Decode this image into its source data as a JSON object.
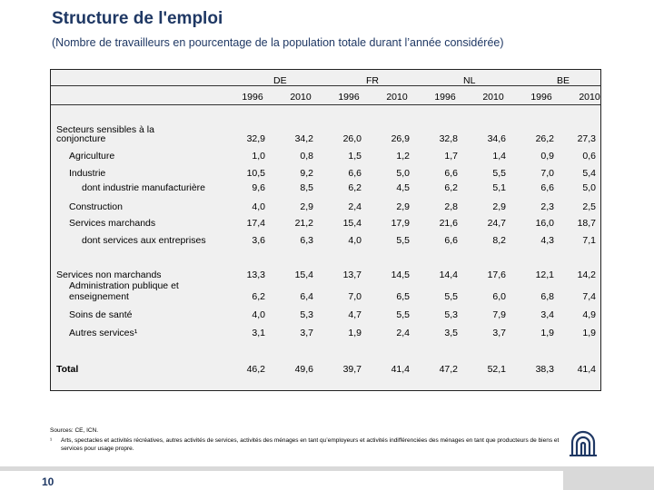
{
  "title": "Structure de l'emploi",
  "subtitle": "(Nombre de travailleurs en pourcentage de la population totale durant l’année considérée)",
  "countries": [
    "DE",
    "FR",
    "NL",
    "BE"
  ],
  "years": [
    "1996",
    "2010",
    "1996",
    "2010",
    "1996",
    "2010",
    "1996",
    "2010"
  ],
  "rows": [
    {
      "label": "Secteurs sensibles à la",
      "values": []
    },
    {
      "label": "conjoncture",
      "values": [
        "32,9",
        "34,2",
        "26,0",
        "26,9",
        "32,8",
        "34,6",
        "26,2",
        "27,3"
      ]
    },
    {
      "label": "Agriculture",
      "values": [
        "1,0",
        "0,8",
        "1,5",
        "1,2",
        "1,7",
        "1,4",
        "0,9",
        "0,6"
      ]
    },
    {
      "label": "Industrie",
      "values": [
        "10,5",
        "9,2",
        "6,6",
        "5,0",
        "6,6",
        "5,5",
        "7,0",
        "5,4"
      ]
    },
    {
      "label": "dont industrie manufacturière",
      "values": [
        "9,6",
        "8,5",
        "6,2",
        "4,5",
        "6,2",
        "5,1",
        "6,6",
        "5,0"
      ]
    },
    {
      "label": "Construction",
      "values": [
        "4,0",
        "2,9",
        "2,4",
        "2,9",
        "2,8",
        "2,9",
        "2,3",
        "2,5"
      ]
    },
    {
      "label": "Services marchands",
      "values": [
        "17,4",
        "21,2",
        "15,4",
        "17,9",
        "21,6",
        "24,7",
        "16,0",
        "18,7"
      ]
    },
    {
      "label": "dont services aux entreprises",
      "values": [
        "3,6",
        "6,3",
        "4,0",
        "5,5",
        "6,6",
        "8,2",
        "4,3",
        "7,1"
      ]
    },
    {
      "label": "Services non marchands",
      "values": [
        "13,3",
        "15,4",
        "13,7",
        "14,5",
        "14,4",
        "17,6",
        "12,1",
        "14,2"
      ]
    },
    {
      "label": "Administration publique et",
      "values": []
    },
    {
      "label": "enseignement",
      "values": [
        "6,2",
        "6,4",
        "7,0",
        "6,5",
        "5,5",
        "6,0",
        "6,8",
        "7,4"
      ]
    },
    {
      "label": "Soins de santé",
      "values": [
        "4,0",
        "5,3",
        "4,7",
        "5,5",
        "5,3",
        "7,9",
        "3,4",
        "4,9"
      ]
    },
    {
      "label": "Autres services¹",
      "values": [
        "3,1",
        "3,7",
        "1,9",
        "2,4",
        "3,5",
        "3,7",
        "1,9",
        "1,9"
      ]
    },
    {
      "label": "Total",
      "values": [
        "46,2",
        "49,6",
        "39,7",
        "41,4",
        "47,2",
        "52,1",
        "38,3",
        "41,4"
      ]
    }
  ],
  "sources": "Sources: CE, ICN.",
  "footnote_mark": "¹",
  "footnote": "Arts, spectacles et activités récréatives, autres activités de services, activités des ménages en tant qu’employeurs et activités indifférenciées des ménages en tant que producteurs de biens et services pour usage propre.",
  "page_number": "10",
  "colors": {
    "title": "#1f3864",
    "frame_bg": "#f0f0f0",
    "footer_bar": "#d9d9d9"
  }
}
